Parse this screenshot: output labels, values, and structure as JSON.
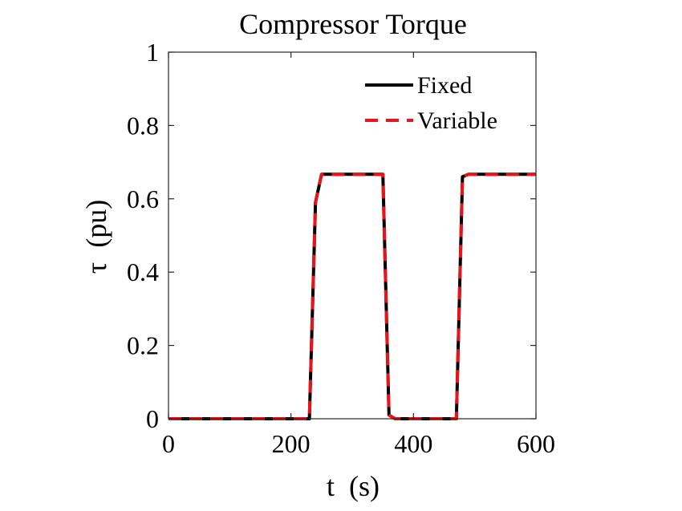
{
  "chart_data": {
    "type": "line",
    "title": "Compressor Torque",
    "xlabel": "t  (s)",
    "ylabel": "τ  (pu)",
    "xlim": [
      0,
      600
    ],
    "ylim": [
      0,
      1
    ],
    "xticks": [
      0,
      200,
      400,
      600
    ],
    "xtick_labels": [
      "0",
      "200",
      "400",
      "600"
    ],
    "yticks": [
      0,
      0.2,
      0.4,
      0.6,
      0.8,
      1
    ],
    "ytick_labels": [
      "0",
      "0.2",
      "0.4",
      "0.6",
      "0.8",
      "1"
    ],
    "grid": false,
    "legend_position": "top-right",
    "series": [
      {
        "name": "Fixed",
        "color": "#000000",
        "style": "solid",
        "x": [
          0,
          230,
          240,
          250,
          350,
          360,
          370,
          470,
          480,
          490,
          600
        ],
        "y": [
          0,
          0,
          0.59,
          0.667,
          0.667,
          0.01,
          0,
          0,
          0.66,
          0.667,
          0.667
        ]
      },
      {
        "name": "Variable",
        "color": "#e8141c",
        "style": "dashed",
        "x": [
          0,
          230,
          240,
          250,
          350,
          360,
          370,
          470,
          480,
          490,
          600
        ],
        "y": [
          0,
          0,
          0.59,
          0.667,
          0.667,
          0.01,
          0,
          0,
          0.66,
          0.667,
          0.667
        ]
      }
    ]
  }
}
